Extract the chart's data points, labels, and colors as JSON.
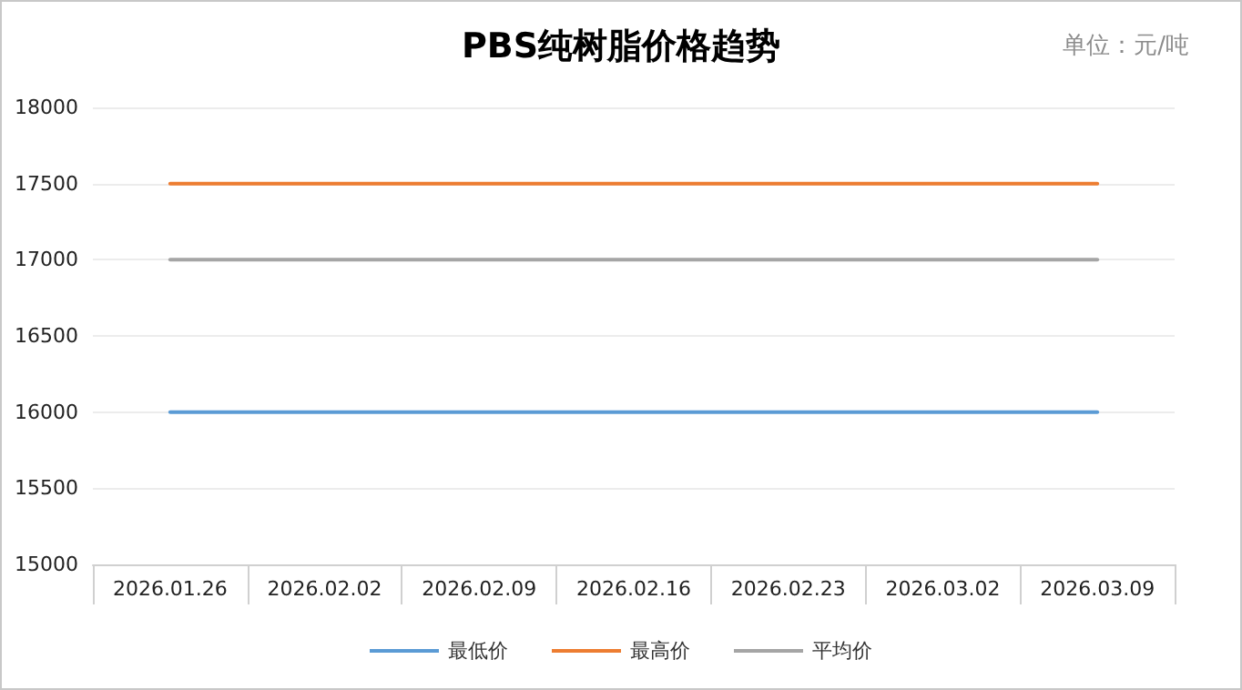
{
  "chart_data": {
    "type": "line",
    "title": "PBS纯树脂价格趋势",
    "annotations": [
      "单位：元/吨"
    ],
    "categories": [
      "2026.01.26",
      "2026.02.02",
      "2026.02.09",
      "2026.02.16",
      "2026.02.23",
      "2026.03.02",
      "2026.03.09"
    ],
    "series": [
      {
        "name": "最低价",
        "color": "#5b9bd5",
        "values": [
          16000,
          16000,
          16000,
          16000,
          16000,
          16000,
          16000
        ]
      },
      {
        "name": "最高价",
        "color": "#ed7d31",
        "values": [
          17500,
          17500,
          17500,
          17500,
          17500,
          17500,
          17500
        ]
      },
      {
        "name": "平均价",
        "color": "#a5a5a5",
        "values": [
          17000,
          17000,
          17000,
          17000,
          17000,
          17000,
          17000
        ]
      }
    ],
    "ylim": [
      15000,
      18000
    ],
    "yticks": [
      15000,
      15500,
      16000,
      16500,
      17000,
      17500,
      18000
    ],
    "grid": "y",
    "legend": "bottom",
    "marker": "none",
    "line_style": "solid"
  }
}
